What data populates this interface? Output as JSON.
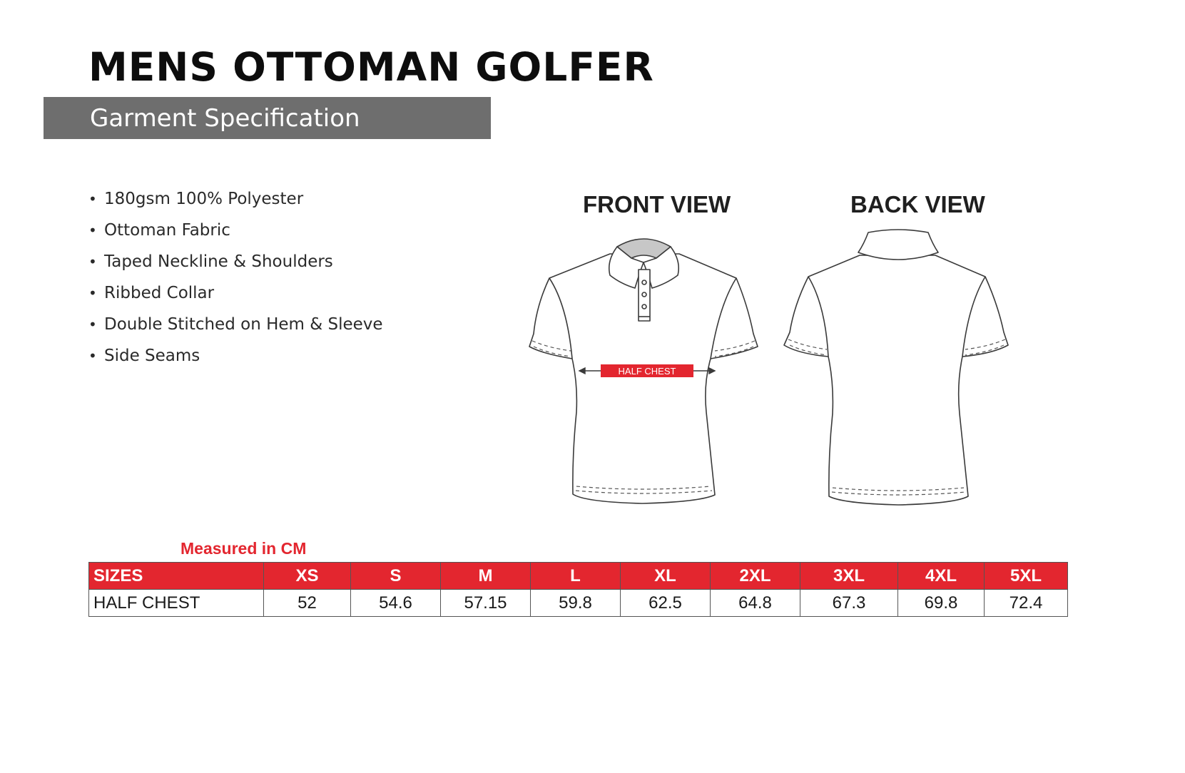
{
  "header": {
    "title": "MENS OTTOMAN GOLFER",
    "subtitle": "Garment Specification"
  },
  "features": [
    "180gsm 100% Polyester",
    "Ottoman Fabric",
    "Taped Neckline & Shoulders",
    "Ribbed Collar",
    "Double Stitched on Hem & Sleeve",
    "Side Seams"
  ],
  "views": {
    "front_label": "FRONT VIEW",
    "back_label": "BACK VIEW",
    "measurement_tag": "HALF CHEST"
  },
  "size_table": {
    "note": "Measured in CM",
    "header_label": "SIZES",
    "sizes": [
      "XS",
      "S",
      "M",
      "L",
      "XL",
      "2XL",
      "3XL",
      "4XL",
      "5XL"
    ],
    "rows": [
      {
        "label": "HALF CHEST",
        "values": [
          "52",
          "54.6",
          "57.15",
          "59.8",
          "62.5",
          "64.8",
          "67.3",
          "69.8",
          "72.4"
        ]
      }
    ]
  },
  "colors": {
    "accent_red": "#e3262f",
    "subtitle_bar": "#6e6e6e",
    "line": "#3a3a3a"
  }
}
